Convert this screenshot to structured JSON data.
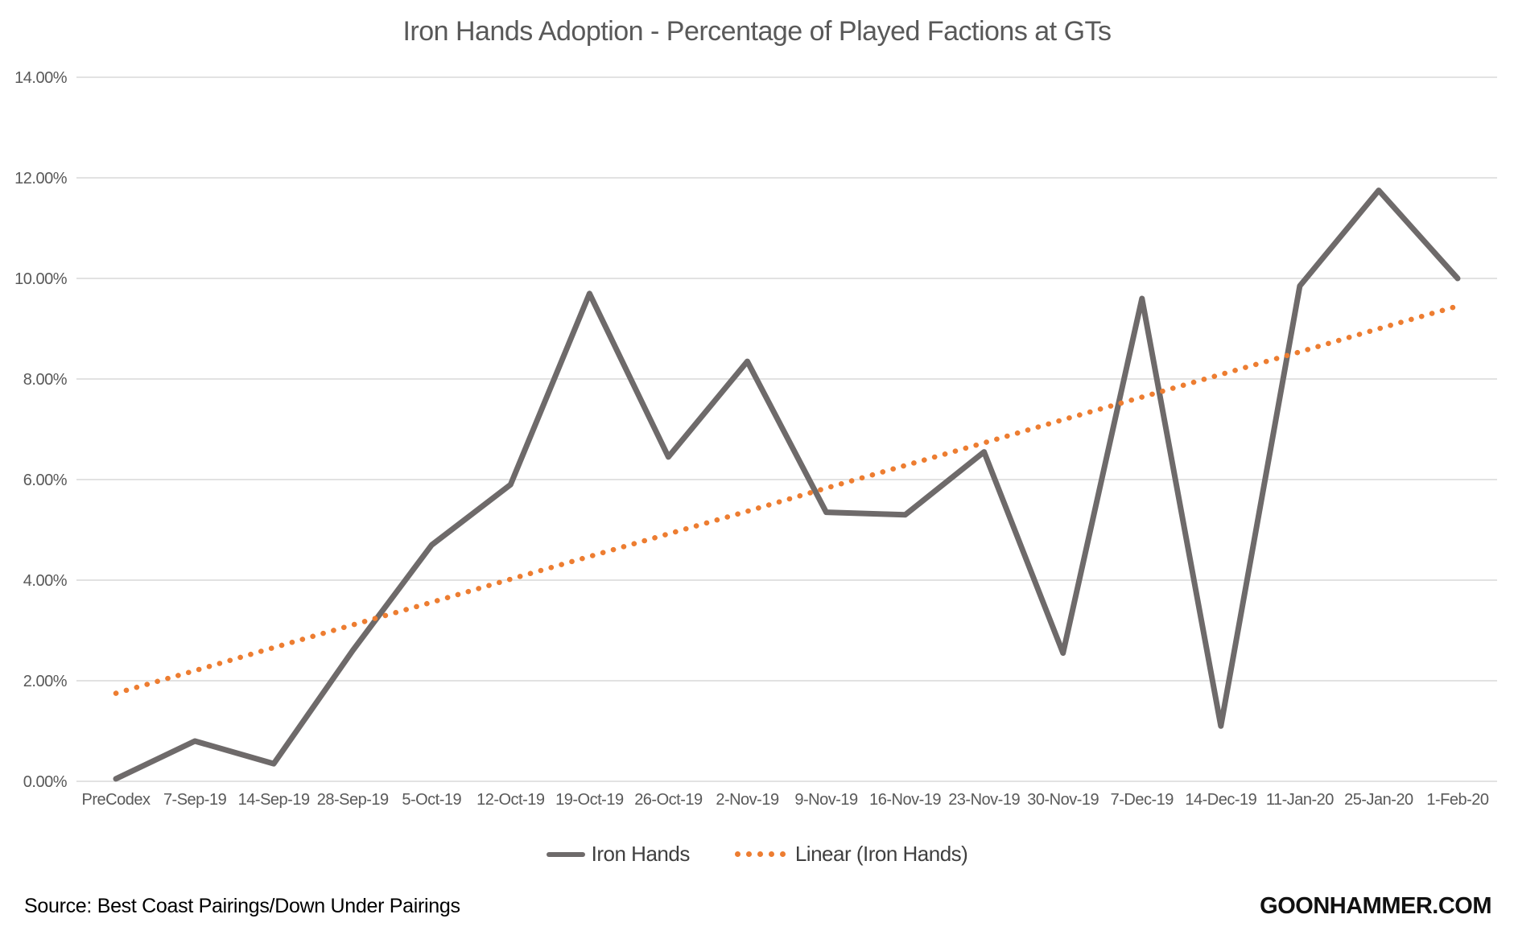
{
  "title": "Iron Hands Adoption - Percentage of Played Factions at GTs",
  "footer": {
    "source": "Source: Best Coast Pairings/Down Under Pairings",
    "brand": "GOONHAMMER.COM"
  },
  "legend": {
    "items": [
      {
        "label": "Iron Hands",
        "style": "solid"
      },
      {
        "label": "Linear (Iron Hands)",
        "style": "dotted"
      }
    ]
  },
  "colors": {
    "series": "#6E6A6A",
    "trend": "#ED7D31",
    "grid": "#D9D9D9",
    "text": "#595959"
  },
  "chart_data": {
    "type": "line",
    "title": "Iron Hands Adoption - Percentage of Played Factions at GTs",
    "xlabel": "",
    "ylabel": "",
    "ylim": [
      0,
      14
    ],
    "grid": true,
    "legend_position": "bottom",
    "y_ticks": [
      "0.00%",
      "2.00%",
      "4.00%",
      "6.00%",
      "8.00%",
      "10.00%",
      "12.00%",
      "14.00%"
    ],
    "categories": [
      "PreCodex",
      "7-Sep-19",
      "14-Sep-19",
      "28-Sep-19",
      "5-Oct-19",
      "12-Oct-19",
      "19-Oct-19",
      "26-Oct-19",
      "2-Nov-19",
      "9-Nov-19",
      "16-Nov-19",
      "23-Nov-19",
      "30-Nov-19",
      "7-Dec-19",
      "14-Dec-19",
      "11-Jan-20",
      "25-Jan-20",
      "1-Feb-20"
    ],
    "series": [
      {
        "name": "Iron Hands",
        "style": "solid",
        "color": "#6E6A6A",
        "values": [
          0.05,
          0.8,
          0.35,
          2.6,
          4.7,
          5.9,
          9.7,
          6.45,
          8.35,
          5.35,
          5.3,
          6.55,
          2.55,
          9.6,
          1.1,
          9.85,
          11.75,
          10.0
        ]
      },
      {
        "name": "Linear (Iron Hands)",
        "style": "dotted",
        "color": "#ED7D31",
        "values": [
          1.75,
          2.2,
          2.66,
          3.11,
          3.56,
          4.02,
          4.47,
          4.92,
          5.37,
          5.83,
          6.28,
          6.73,
          7.19,
          7.64,
          8.09,
          8.54,
          9.0,
          9.45
        ]
      }
    ]
  }
}
